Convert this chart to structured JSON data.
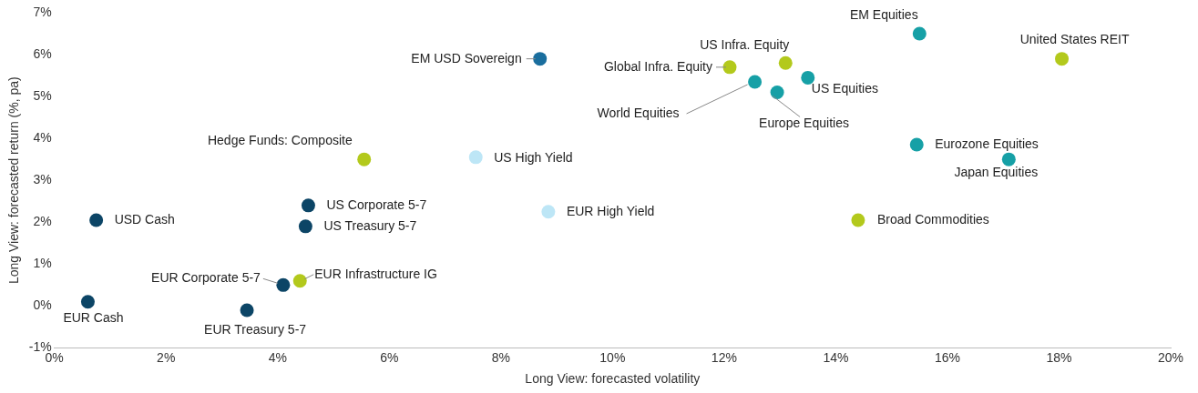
{
  "chart_data": {
    "type": "scatter",
    "xlabel": "Long View: forecasted volatility",
    "ylabel": "Long View: forecasted return (%, pa)",
    "xlim": [
      0,
      20
    ],
    "xticks": [
      {
        "value": 0,
        "label": "0%"
      },
      {
        "value": 2,
        "label": "2%"
      },
      {
        "value": 4,
        "label": "4%"
      },
      {
        "value": 6,
        "label": "6%"
      },
      {
        "value": 8,
        "label": "8%"
      },
      {
        "value": 10,
        "label": "10%"
      },
      {
        "value": 12,
        "label": "12%"
      },
      {
        "value": 14,
        "label": "14%"
      },
      {
        "value": 16,
        "label": "16%"
      },
      {
        "value": 18,
        "label": "18%"
      },
      {
        "value": 20,
        "label": "20%"
      }
    ],
    "ylim": [
      -1,
      7
    ],
    "yticks": [
      {
        "value": -1,
        "label": "-1%"
      },
      {
        "value": 0,
        "label": "0%"
      },
      {
        "value": 1,
        "label": "1%"
      },
      {
        "value": 2,
        "label": "2%"
      },
      {
        "value": 3,
        "label": "3%"
      },
      {
        "value": 4,
        "label": "4%"
      },
      {
        "value": 5,
        "label": "5%"
      },
      {
        "value": 6,
        "label": "6%"
      },
      {
        "value": 7,
        "label": "7%"
      }
    ],
    "grid": false,
    "legend": false,
    "marker": "circle",
    "series": [
      {
        "name": "EM USD Sovereign",
        "color": "#1a6e9e",
        "x": [
          8.7
        ],
        "values": [
          5.9
        ]
      },
      {
        "name": "US Infra. Equity",
        "color": "#b3c91c",
        "x": [
          13.1
        ],
        "values": [
          5.8
        ]
      },
      {
        "name": "Global Infra. Equity",
        "color": "#b3c91c",
        "x": [
          12.1
        ],
        "values": [
          5.7
        ]
      },
      {
        "name": "EM Equities",
        "color": "#16a0a6",
        "x": [
          15.5
        ],
        "values": [
          6.5
        ]
      },
      {
        "name": "United States REIT",
        "color": "#b3c91c",
        "x": [
          18.05
        ],
        "values": [
          5.9
        ]
      },
      {
        "name": "World Equities",
        "color": "#16a0a6",
        "x": [
          12.55
        ],
        "values": [
          5.35
        ]
      },
      {
        "name": "US Equities",
        "color": "#16a0a6",
        "x": [
          13.5
        ],
        "values": [
          5.45
        ]
      },
      {
        "name": "Europe Equities",
        "color": "#16a0a6",
        "x": [
          12.95
        ],
        "values": [
          5.1
        ]
      },
      {
        "name": "Eurozone Equities",
        "color": "#16a0a6",
        "x": [
          15.45
        ],
        "values": [
          3.85
        ]
      },
      {
        "name": "Japan Equities",
        "color": "#16a0a6",
        "x": [
          17.1
        ],
        "values": [
          3.5
        ]
      },
      {
        "name": "Hedge Funds: Composite",
        "color": "#b3c91c",
        "x": [
          5.55
        ],
        "values": [
          3.5
        ]
      },
      {
        "name": "US High Yield",
        "color": "#bde6f6",
        "x": [
          7.55
        ],
        "values": [
          3.55
        ]
      },
      {
        "name": "EUR High Yield",
        "color": "#bde6f6",
        "x": [
          8.85
        ],
        "values": [
          2.25
        ]
      },
      {
        "name": "Broad Commodities",
        "color": "#b3c91c",
        "x": [
          14.4
        ],
        "values": [
          2.05
        ]
      },
      {
        "name": "US Corporate 5-7",
        "color": "#0c4566",
        "x": [
          4.55
        ],
        "values": [
          2.4
        ]
      },
      {
        "name": "US Treasury 5-7",
        "color": "#0c4566",
        "x": [
          4.5
        ],
        "values": [
          1.9
        ]
      },
      {
        "name": "USD Cash",
        "color": "#0c4566",
        "x": [
          0.75
        ],
        "values": [
          2.05
        ]
      },
      {
        "name": "EUR Corporate 5-7",
        "color": "#0c4566",
        "x": [
          4.1
        ],
        "values": [
          0.5
        ]
      },
      {
        "name": "EUR Infrastructure IG",
        "color": "#b3c91c",
        "x": [
          4.4
        ],
        "values": [
          0.6
        ]
      },
      {
        "name": "EUR Cash",
        "color": "#0c4566",
        "x": [
          0.6
        ],
        "values": [
          0.1
        ]
      },
      {
        "name": "EUR Treasury 5-7",
        "color": "#0c4566",
        "x": [
          3.45
        ],
        "values": [
          -0.1
        ]
      }
    ]
  }
}
